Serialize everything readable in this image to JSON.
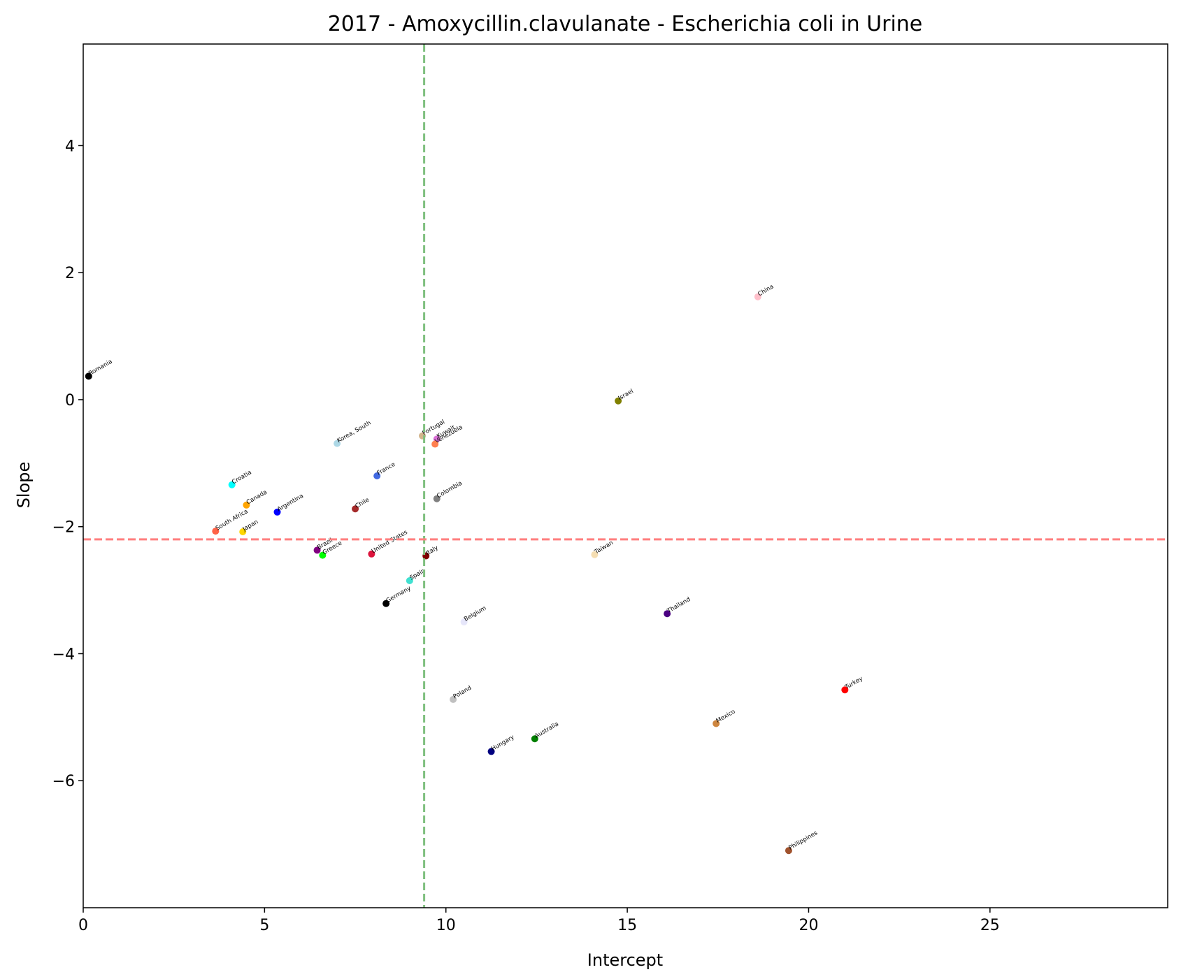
{
  "chart_data": {
    "type": "scatter",
    "title": "2017 - Amoxycillin.clavulanate - Escherichia coli in Urine",
    "xlabel": "Intercept",
    "ylabel": "Slope",
    "xlim": [
      0,
      29.9
    ],
    "ylim": [
      -8.0,
      5.6
    ],
    "xticks": [
      0,
      5,
      10,
      15,
      20,
      25
    ],
    "yticks": [
      4,
      2,
      0,
      -2,
      -4,
      -6
    ],
    "xtick_labels": [
      "0",
      "5",
      "10",
      "15",
      "20",
      "25"
    ],
    "ytick_labels": [
      "4",
      "2",
      "0",
      "−2",
      "−4",
      "−6"
    ],
    "grid": false,
    "reference_lines": {
      "vertical_x": 9.4,
      "vertical_color": "#7fbf7f",
      "horizontal_y": -2.2,
      "horizontal_color": "#ff7f7f"
    },
    "points": [
      {
        "label": "Romania",
        "x": 0.15,
        "y": 0.37,
        "color": "#000000"
      },
      {
        "label": "China",
        "x": 18.6,
        "y": 1.62,
        "color": "#ffc0cb"
      },
      {
        "label": "Israel",
        "x": 14.75,
        "y": -0.02,
        "color": "#808000"
      },
      {
        "label": "Korea, South",
        "x": 7.0,
        "y": -0.69,
        "color": "#add8e6"
      },
      {
        "label": "Portugal",
        "x": 9.35,
        "y": -0.57,
        "color": "#d2b48c"
      },
      {
        "label": "Kuwait",
        "x": 9.75,
        "y": -0.62,
        "color": "#da70d6"
      },
      {
        "label": "Venezuela",
        "x": 9.7,
        "y": -0.7,
        "color": "#ff7f50"
      },
      {
        "label": "France",
        "x": 8.1,
        "y": -1.2,
        "color": "#4169e1"
      },
      {
        "label": "Colombia",
        "x": 9.75,
        "y": -1.56,
        "color": "#808080"
      },
      {
        "label": "Croatia",
        "x": 4.1,
        "y": -1.34,
        "color": "#00ffff"
      },
      {
        "label": "Canada",
        "x": 4.5,
        "y": -1.66,
        "color": "#ffa500"
      },
      {
        "label": "Argentina",
        "x": 5.35,
        "y": -1.77,
        "color": "#0000ff"
      },
      {
        "label": "Chile",
        "x": 7.5,
        "y": -1.72,
        "color": "#a52a2a"
      },
      {
        "label": "South Africa",
        "x": 3.65,
        "y": -2.07,
        "color": "#ff6347"
      },
      {
        "label": "Japan",
        "x": 4.4,
        "y": -2.08,
        "color": "#ffd700"
      },
      {
        "label": "Brazil",
        "x": 6.45,
        "y": -2.37,
        "color": "#800080"
      },
      {
        "label": "Greece",
        "x": 6.6,
        "y": -2.45,
        "color": "#00ff00"
      },
      {
        "label": "United States",
        "x": 7.95,
        "y": -2.43,
        "color": "#dc143c"
      },
      {
        "label": "Italy",
        "x": 9.45,
        "y": -2.46,
        "color": "#800000"
      },
      {
        "label": "Taiwan",
        "x": 14.1,
        "y": -2.44,
        "color": "#f5deb3"
      },
      {
        "label": "Spain",
        "x": 9.0,
        "y": -2.85,
        "color": "#40e0d0"
      },
      {
        "label": "Germany",
        "x": 8.35,
        "y": -3.21,
        "color": "#000000"
      },
      {
        "label": "Belgium",
        "x": 10.5,
        "y": -3.5,
        "color": "#e6e6fa"
      },
      {
        "label": "Thailand",
        "x": 16.1,
        "y": -3.37,
        "color": "#4b0082"
      },
      {
        "label": "Poland",
        "x": 10.2,
        "y": -4.72,
        "color": "#c0c0c0"
      },
      {
        "label": "Turkey",
        "x": 21.0,
        "y": -4.57,
        "color": "#ff0000"
      },
      {
        "label": "Mexico",
        "x": 17.45,
        "y": -5.1,
        "color": "#cd853f"
      },
      {
        "label": "Australia",
        "x": 12.45,
        "y": -5.34,
        "color": "#008000"
      },
      {
        "label": "Hungary",
        "x": 11.25,
        "y": -5.54,
        "color": "#000080"
      },
      {
        "label": "Philippines",
        "x": 19.45,
        "y": -7.1,
        "color": "#a0522d"
      }
    ]
  }
}
